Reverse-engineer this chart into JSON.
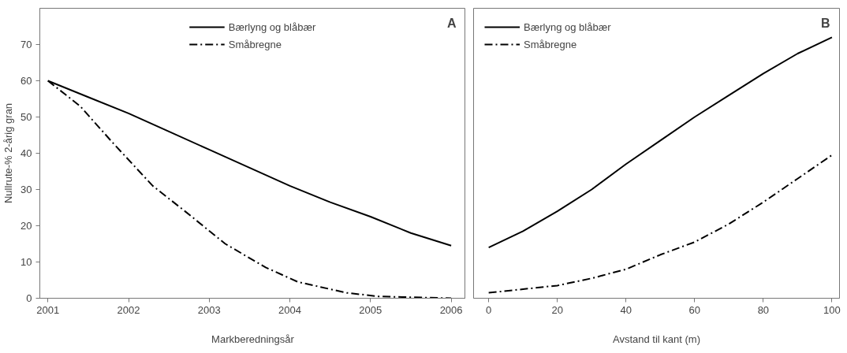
{
  "chart_data": [
    {
      "type": "line",
      "title": "A",
      "xlabel": "Markberedningsår",
      "ylabel": "Nullrute-% 2-årig gran",
      "xlim": [
        2000.9,
        2006.18
      ],
      "xticks": [
        2001,
        2002,
        2003,
        2004,
        2005,
        2006
      ],
      "ylim": [
        0,
        80
      ],
      "yticks": [
        0,
        10,
        20,
        30,
        40,
        50,
        60,
        70
      ],
      "grid": false,
      "legend": "top",
      "series": [
        {
          "name": "Bærlyng og blåbær",
          "color": "#000000",
          "line_style": "solid",
          "x": [
            2001,
            2001.5,
            2002,
            2002.5,
            2003,
            2003.5,
            2004,
            2004.5,
            2005,
            2005.5,
            2006
          ],
          "values": [
            60,
            55.5,
            51,
            46,
            41,
            36,
            31,
            26.5,
            22.5,
            18,
            14.5
          ]
        },
        {
          "name": "Småbregne",
          "color": "#000000",
          "line_style": "dashdot",
          "x": [
            2001,
            2001.4,
            2001.8,
            2002.3,
            2002.7,
            2003.2,
            2003.7,
            2004.1,
            2004.7,
            2005.1,
            2006
          ],
          "values": [
            60,
            53,
            43,
            31,
            24,
            15,
            8.5,
            4.5,
            1.5,
            0.5,
            0
          ]
        }
      ]
    },
    {
      "type": "line",
      "title": "B",
      "xlabel": "Avstand til kant (m)",
      "xlim": [
        -4.4,
        102.2
      ],
      "xticks": [
        0,
        20,
        40,
        60,
        80,
        100
      ],
      "ylim": [
        0,
        80
      ],
      "tick_labels": "x",
      "grid": false,
      "legend": "top left",
      "series": [
        {
          "name": "Bærlyng og blåbær",
          "color": "#000000",
          "line_style": "solid",
          "x": [
            0,
            10,
            20,
            30,
            40,
            50,
            60,
            70,
            80,
            90,
            100
          ],
          "values": [
            14,
            18.5,
            24,
            30,
            37,
            43.5,
            50,
            56,
            62,
            67.5,
            72
          ]
        },
        {
          "name": "Småbregne",
          "color": "#000000",
          "line_style": "dashdot",
          "x": [
            0,
            10,
            20,
            30,
            40,
            50,
            60,
            70,
            80,
            90,
            100
          ],
          "values": [
            1.5,
            2.5,
            3.5,
            5.5,
            8,
            12,
            15.5,
            20.5,
            26.5,
            33,
            39.5
          ]
        }
      ]
    }
  ]
}
